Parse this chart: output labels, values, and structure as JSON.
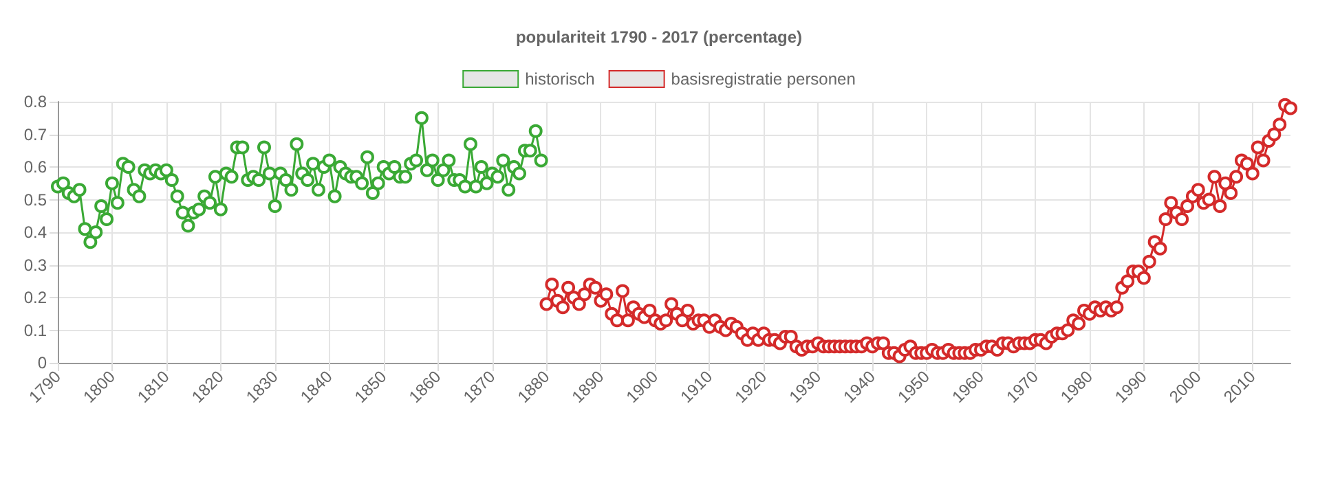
{
  "chart_data": {
    "type": "line",
    "title": "populariteit 1790 - 2017 (percentage)",
    "xlim": [
      1790,
      2017
    ],
    "xticks": [
      1790,
      1800,
      1810,
      1820,
      1830,
      1840,
      1850,
      1860,
      1870,
      1880,
      1890,
      1900,
      1910,
      1920,
      1930,
      1940,
      1950,
      1960,
      1970,
      1980,
      1990,
      2000,
      2010
    ],
    "ylim": [
      0,
      0.8
    ],
    "yticks": [
      0,
      0.1,
      0.2,
      0.3,
      0.4,
      0.5,
      0.6,
      0.7,
      0.8
    ],
    "grid": true,
    "legend": "top",
    "marker": "circle",
    "line_style": "solid",
    "series": [
      {
        "name": "historisch",
        "color": "#3aa935",
        "x": [
          1790,
          1791,
          1792,
          1793,
          1794,
          1795,
          1796,
          1797,
          1798,
          1799,
          1800,
          1801,
          1802,
          1803,
          1804,
          1805,
          1806,
          1807,
          1808,
          1809,
          1810,
          1811,
          1812,
          1813,
          1814,
          1815,
          1816,
          1817,
          1818,
          1819,
          1820,
          1821,
          1822,
          1823,
          1824,
          1825,
          1826,
          1827,
          1828,
          1829,
          1830,
          1831,
          1832,
          1833,
          1834,
          1835,
          1836,
          1837,
          1838,
          1839,
          1840,
          1841,
          1842,
          1843,
          1844,
          1845,
          1846,
          1847,
          1848,
          1849,
          1850,
          1851,
          1852,
          1853,
          1854,
          1855,
          1856,
          1857,
          1858,
          1859,
          1860,
          1861,
          1862,
          1863,
          1864,
          1865,
          1866,
          1867,
          1868,
          1869,
          1870,
          1871,
          1872,
          1873,
          1874,
          1875,
          1876,
          1877,
          1878,
          1879
        ],
        "values": [
          0.54,
          0.55,
          0.52,
          0.51,
          0.53,
          0.41,
          0.37,
          0.4,
          0.48,
          0.44,
          0.55,
          0.49,
          0.61,
          0.6,
          0.53,
          0.51,
          0.59,
          0.58,
          0.59,
          0.58,
          0.59,
          0.56,
          0.51,
          0.46,
          0.42,
          0.46,
          0.47,
          0.51,
          0.49,
          0.57,
          0.47,
          0.58,
          0.57,
          0.66,
          0.66,
          0.56,
          0.57,
          0.56,
          0.66,
          0.58,
          0.48,
          0.58,
          0.56,
          0.53,
          0.67,
          0.58,
          0.56,
          0.61,
          0.53,
          0.6,
          0.62,
          0.51,
          0.6,
          0.58,
          0.57,
          0.57,
          0.55,
          0.63,
          0.52,
          0.55,
          0.6,
          0.58,
          0.6,
          0.57,
          0.57,
          0.61,
          0.62,
          0.75,
          0.59,
          0.62,
          0.56,
          0.59,
          0.62,
          0.56,
          0.56,
          0.54,
          0.67,
          0.54,
          0.6,
          0.55,
          0.58,
          0.57,
          0.62,
          0.53,
          0.6,
          0.58,
          0.65,
          0.65,
          0.71,
          0.62
        ]
      },
      {
        "name": "basisregistratie personen",
        "color": "#d42a2a",
        "x": [
          1880,
          1881,
          1882,
          1883,
          1884,
          1885,
          1886,
          1887,
          1888,
          1889,
          1890,
          1891,
          1892,
          1893,
          1894,
          1895,
          1896,
          1897,
          1898,
          1899,
          1900,
          1901,
          1902,
          1903,
          1904,
          1905,
          1906,
          1907,
          1908,
          1909,
          1910,
          1911,
          1912,
          1913,
          1914,
          1915,
          1916,
          1917,
          1918,
          1919,
          1920,
          1921,
          1922,
          1923,
          1924,
          1925,
          1926,
          1927,
          1928,
          1929,
          1930,
          1931,
          1932,
          1933,
          1934,
          1935,
          1936,
          1937,
          1938,
          1939,
          1940,
          1941,
          1942,
          1943,
          1944,
          1945,
          1946,
          1947,
          1948,
          1949,
          1950,
          1951,
          1952,
          1953,
          1954,
          1955,
          1956,
          1957,
          1958,
          1959,
          1960,
          1961,
          1962,
          1963,
          1964,
          1965,
          1966,
          1967,
          1968,
          1969,
          1970,
          1971,
          1972,
          1973,
          1974,
          1975,
          1976,
          1977,
          1978,
          1979,
          1980,
          1981,
          1982,
          1983,
          1984,
          1985,
          1986,
          1987,
          1988,
          1989,
          1990,
          1991,
          1992,
          1993,
          1994,
          1995,
          1996,
          1997,
          1998,
          1999,
          2000,
          2001,
          2002,
          2003,
          2004,
          2005,
          2006,
          2007,
          2008,
          2009,
          2010,
          2011,
          2012,
          2013,
          2014,
          2015,
          2016,
          2017
        ],
        "values": [
          0.18,
          0.24,
          0.19,
          0.17,
          0.23,
          0.2,
          0.18,
          0.21,
          0.24,
          0.23,
          0.19,
          0.21,
          0.15,
          0.13,
          0.22,
          0.13,
          0.17,
          0.15,
          0.14,
          0.16,
          0.13,
          0.12,
          0.13,
          0.18,
          0.15,
          0.13,
          0.16,
          0.12,
          0.13,
          0.13,
          0.11,
          0.13,
          0.11,
          0.1,
          0.12,
          0.11,
          0.09,
          0.07,
          0.09,
          0.07,
          0.09,
          0.07,
          0.07,
          0.06,
          0.08,
          0.08,
          0.05,
          0.04,
          0.05,
          0.05,
          0.06,
          0.05,
          0.05,
          0.05,
          0.05,
          0.05,
          0.05,
          0.05,
          0.05,
          0.06,
          0.05,
          0.06,
          0.06,
          0.03,
          0.03,
          0.02,
          0.04,
          0.05,
          0.03,
          0.03,
          0.03,
          0.04,
          0.03,
          0.03,
          0.04,
          0.03,
          0.03,
          0.03,
          0.03,
          0.04,
          0.04,
          0.05,
          0.05,
          0.04,
          0.06,
          0.06,
          0.05,
          0.06,
          0.06,
          0.06,
          0.07,
          0.07,
          0.06,
          0.08,
          0.09,
          0.09,
          0.1,
          0.13,
          0.12,
          0.16,
          0.15,
          0.17,
          0.16,
          0.17,
          0.16,
          0.17,
          0.23,
          0.25,
          0.28,
          0.28,
          0.26,
          0.31,
          0.37,
          0.35,
          0.44,
          0.49,
          0.46,
          0.44,
          0.48,
          0.51,
          0.53,
          0.49,
          0.5,
          0.57,
          0.48,
          0.55,
          0.52,
          0.57,
          0.62,
          0.61,
          0.58,
          0.66,
          0.62,
          0.68,
          0.7,
          0.73,
          0.79,
          0.78
        ]
      }
    ]
  }
}
